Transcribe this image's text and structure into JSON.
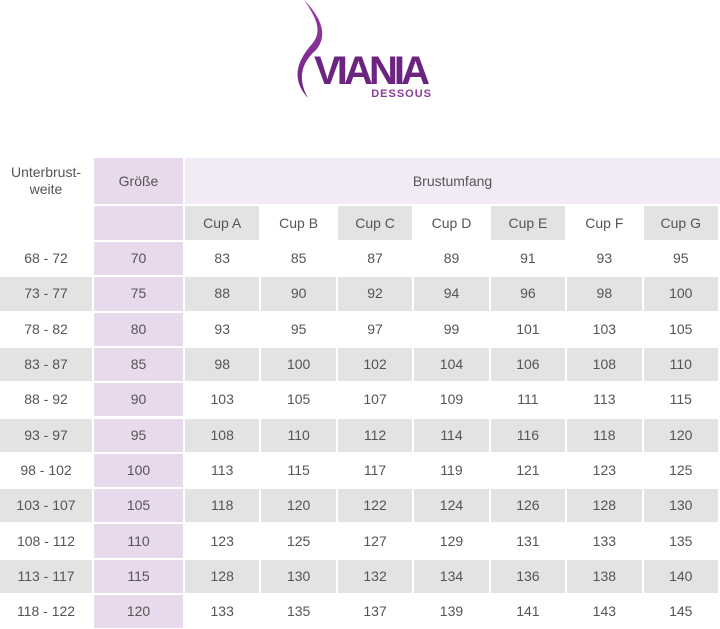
{
  "logo": {
    "brand": "VIANIA",
    "tagline": "DESSOUS"
  },
  "table": {
    "header": {
      "unterbrust": "Unterbrust-\nweite",
      "groesse": "Größe",
      "brustumfang": "Brustumfang",
      "cups": [
        "Cup A",
        "Cup B",
        "Cup C",
        "Cup D",
        "Cup E",
        "Cup F",
        "Cup G"
      ]
    },
    "rows": [
      [
        "68 - 72",
        70,
        83,
        85,
        87,
        89,
        91,
        93,
        95
      ],
      [
        "73 - 77",
        75,
        88,
        90,
        92,
        94,
        96,
        98,
        100
      ],
      [
        "78 - 82",
        80,
        93,
        95,
        97,
        99,
        101,
        103,
        105
      ],
      [
        "83 - 87",
        85,
        98,
        100,
        102,
        104,
        106,
        108,
        110
      ],
      [
        "88 - 92",
        90,
        103,
        105,
        107,
        109,
        111,
        113,
        115
      ],
      [
        "93 - 97",
        95,
        108,
        110,
        112,
        114,
        116,
        118,
        120
      ],
      [
        "98 - 102",
        100,
        113,
        115,
        117,
        119,
        121,
        123,
        125
      ],
      [
        "103 - 107",
        105,
        118,
        120,
        122,
        124,
        126,
        128,
        130
      ],
      [
        "108 - 112",
        110,
        123,
        125,
        127,
        129,
        131,
        133,
        135
      ],
      [
        "113 - 117",
        115,
        128,
        130,
        132,
        134,
        136,
        138,
        140
      ],
      [
        "118 - 122",
        120,
        133,
        135,
        137,
        139,
        141,
        143,
        145
      ]
    ]
  }
}
